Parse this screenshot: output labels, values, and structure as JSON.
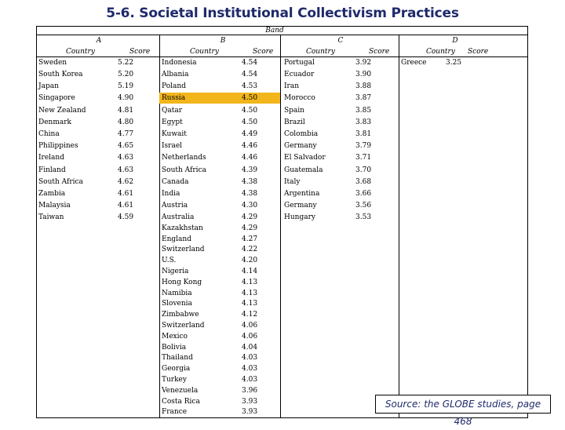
{
  "title": "5-6. Societal Institutional Collectivism Practices",
  "band_label": "Band",
  "bands": [
    "A",
    "B",
    "C",
    "D"
  ],
  "col_country": "Country",
  "col_score": "Score",
  "band_a": [
    [
      "Sweden",
      "5.22"
    ],
    [
      "South Korea",
      "5.20"
    ],
    [
      "Japan",
      "5.19"
    ],
    [
      "Singapore",
      "4.90"
    ],
    [
      "New Zealand",
      "4.81"
    ],
    [
      "Denmark",
      "4.80"
    ],
    [
      "China",
      "4.77"
    ],
    [
      "Philippines",
      "4.65"
    ],
    [
      "Ireland",
      "4.63"
    ],
    [
      "Finland",
      "4.63"
    ],
    [
      "South Africa",
      "4.62"
    ],
    [
      "Zambia",
      "4.61"
    ],
    [
      "Malaysia",
      "4.61"
    ],
    [
      "Taiwan",
      "4.59"
    ]
  ],
  "band_b": [
    [
      "Indonesia",
      "4.54"
    ],
    [
      "Albania",
      "4.54"
    ],
    [
      "Poland",
      "4.53"
    ],
    [
      "Russia",
      "4.50"
    ],
    [
      "Qatar",
      "4.50"
    ],
    [
      "Egypt",
      "4.50"
    ],
    [
      "Kuwait",
      "4.49"
    ],
    [
      "Israel",
      "4.46"
    ],
    [
      "Netherlands",
      "4.46"
    ],
    [
      "South Africa",
      "4.39"
    ],
    [
      "Canada",
      "4.38"
    ],
    [
      "India",
      "4.38"
    ],
    [
      "Austria",
      "4.30"
    ],
    [
      "Australia",
      "4.29"
    ],
    [
      "Kazakhstan",
      "4.29"
    ],
    [
      "England",
      "4.27"
    ],
    [
      "Switzerland",
      "4.22"
    ],
    [
      "U.S.",
      "4.20"
    ],
    [
      "Nigeria",
      "4.14"
    ],
    [
      "Hong Kong",
      "4.13"
    ],
    [
      "Namibia",
      "4.13"
    ],
    [
      "Slovenia",
      "4.13"
    ],
    [
      "Zimbabwe",
      "4.12"
    ],
    [
      "Switzerland",
      "4.06"
    ],
    [
      "Mexico",
      "4.06"
    ],
    [
      "Bolivia",
      "4.04"
    ],
    [
      "Thailand",
      "4.03"
    ],
    [
      "Georgia",
      "4.03"
    ],
    [
      "Turkey",
      "4.03"
    ],
    [
      "Venezuela",
      "3.96"
    ],
    [
      "Costa Rica",
      "3.93"
    ],
    [
      "France",
      "3.93"
    ]
  ],
  "band_c": [
    [
      "Portugal",
      "3.92"
    ],
    [
      "Ecuador",
      "3.90"
    ],
    [
      "Iran",
      "3.88"
    ],
    [
      "Morocco",
      "3.87"
    ],
    [
      "Spain",
      "3.85"
    ],
    [
      "Brazil",
      "3.83"
    ],
    [
      "Colombia",
      "3.81"
    ],
    [
      "Germany",
      "3.79"
    ],
    [
      "El Salvador",
      "3.71"
    ],
    [
      "Guatemala",
      "3.70"
    ],
    [
      "Italy",
      "3.68"
    ],
    [
      "Argentina",
      "3.66"
    ],
    [
      "Germany",
      "3.56"
    ],
    [
      "Hungary",
      "3.53"
    ]
  ],
  "band_d": [
    [
      "Greece",
      "3.25"
    ]
  ],
  "highlight": {
    "band": "B",
    "country": "Russia",
    "color": "#f2b61c"
  },
  "source": "Source: the GLOBE studies, page 468"
}
